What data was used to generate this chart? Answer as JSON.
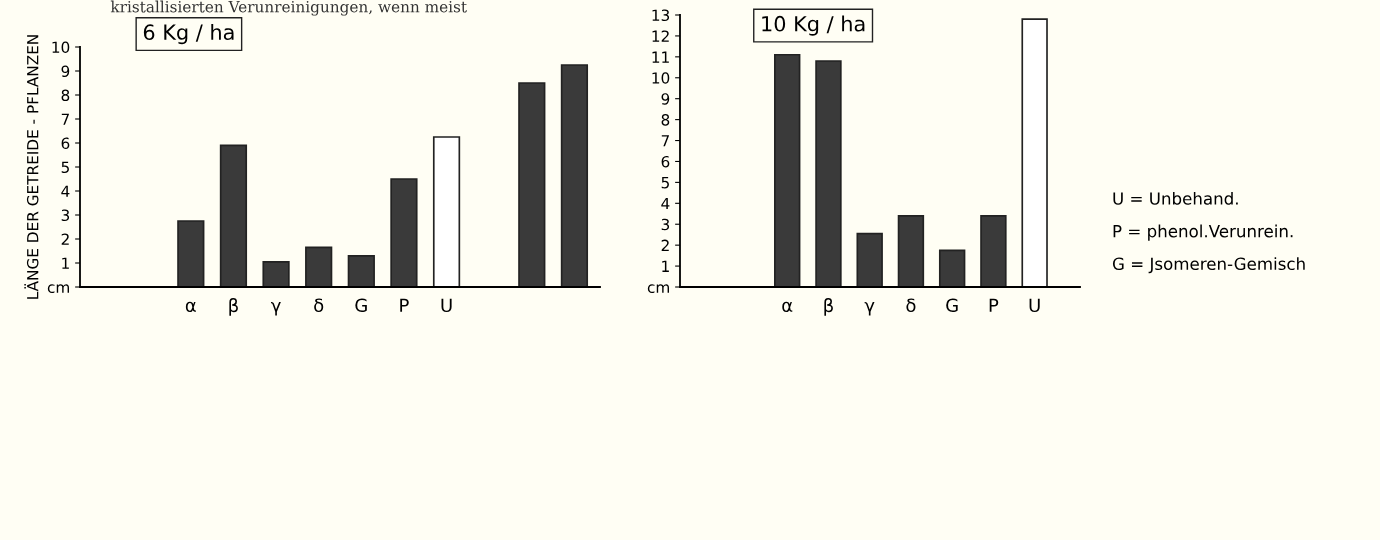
{
  "chart_data": [
    {
      "type": "bar",
      "title": "6 Kg / ha",
      "ylabel": "LÄNGE DER GETREIDE - PFLANZEN",
      "categories": [
        null,
        null,
        "α",
        "β",
        "γ",
        "δ",
        "G",
        "P",
        "U",
        null,
        null,
        null
      ],
      "values": [
        null,
        null,
        2.75,
        5.9,
        1.05,
        1.65,
        1.3,
        4.5,
        6.25,
        null,
        8.5,
        9.25
      ],
      "colors": [
        "#3a3a3a",
        "#3a3a3a",
        "#3a3a3a",
        "#3a3a3a",
        "#3a3a3a",
        "#3a3a3a",
        "#3a3a3a",
        "#3a3a3a",
        "#ffffff",
        "#3a3a3a",
        "#3a3a3a",
        "#3a3a3a"
      ],
      "ylim": [
        0,
        10
      ],
      "yticks": [
        {
          "value": 0,
          "label": "cm"
        },
        1,
        2,
        3,
        4,
        5,
        6,
        7,
        8,
        9,
        10
      ],
      "annotations": [
        "kristallisierten Verunreinigungen, wenn meist"
      ]
    },
    {
      "type": "bar",
      "title": "10 Kg / ha",
      "categories": [
        null,
        null,
        "α",
        "β",
        "γ",
        "δ",
        "G",
        "P",
        "U"
      ],
      "values": [
        null,
        null,
        11.1,
        10.8,
        2.55,
        3.4,
        1.75,
        3.4,
        12.8
      ],
      "colors": [
        "#3a3a3a",
        "#3a3a3a",
        "#3a3a3a",
        "#3a3a3a",
        "#3a3a3a",
        "#3a3a3a",
        "#3a3a3a",
        "#3a3a3a",
        "#ffffff"
      ],
      "ylim": [
        0,
        13
      ],
      "yticks": [
        {
          "value": 0,
          "label": "cm"
        },
        1,
        2,
        3,
        4,
        5,
        6,
        7,
        8,
        9,
        10,
        11,
        12,
        13
      ],
      "annotations": [
        "U = Unbehand.",
        "P = phenol.Verunrein.",
        "G = Jsomeren-Gemisch"
      ]
    }
  ]
}
